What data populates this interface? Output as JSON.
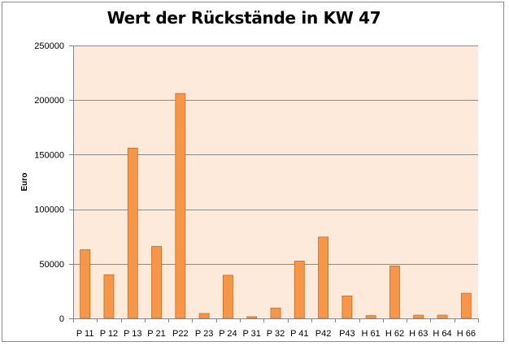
{
  "chart_data": {
    "type": "bar",
    "title": "Wert der Rückstände in KW 47",
    "xlabel": "",
    "ylabel": "Euro",
    "ylim": [
      0,
      250000
    ],
    "yticks": [
      0,
      50000,
      100000,
      150000,
      200000,
      250000
    ],
    "ytick_labels": [
      "0",
      "50000",
      "100000",
      "150000",
      "200000",
      "250000"
    ],
    "grid": true,
    "legend": "none",
    "categories": [
      "P 11",
      "P 12",
      "P 13",
      "P 21",
      "P22",
      "P 23",
      "P 24",
      "P 31",
      "P 32",
      "P 41",
      "P42",
      "P43",
      "H 61",
      "H 62",
      "H 63",
      "H 64",
      "H 66"
    ],
    "values": [
      63000,
      40000,
      156000,
      66000,
      206000,
      4500,
      39500,
      1500,
      9500,
      52500,
      74500,
      20500,
      2500,
      48000,
      3000,
      3000,
      23000
    ],
    "colors": {
      "bar_fill": "#F79646",
      "bar_stroke": "#C86B1F",
      "plot_background": "#FDEADA",
      "gridline": "#8C8C8C",
      "axis": "#868686"
    }
  }
}
